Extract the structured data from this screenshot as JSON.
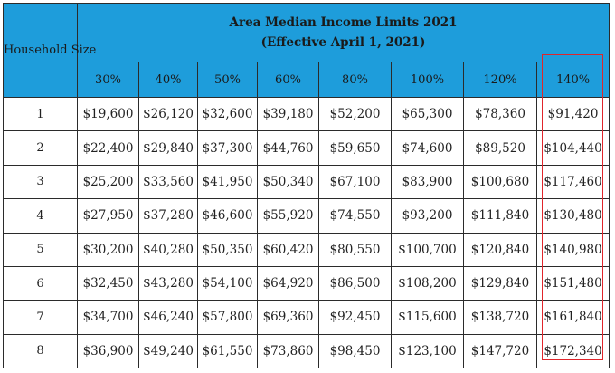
{
  "table": {
    "household_label": "Household Size",
    "title": "Area Median Income Limits 2021",
    "subtitle": "(Effective April 1, 2021)",
    "percent_headers": [
      "30%",
      "40%",
      "50%",
      "60%",
      "80%",
      "100%",
      "120%",
      "140%"
    ],
    "rows": [
      {
        "size": "1",
        "values": [
          "$19,600",
          "$26,120",
          "$32,600",
          "$39,180",
          "$52,200",
          "$65,300",
          "$78,360",
          "$91,420"
        ]
      },
      {
        "size": "2",
        "values": [
          "$22,400",
          "$29,840",
          "$37,300",
          "$44,760",
          "$59,650",
          "$74,600",
          "$89,520",
          "$104,440"
        ]
      },
      {
        "size": "3",
        "values": [
          "$25,200",
          "$33,560",
          "$41,950",
          "$50,340",
          "$67,100",
          "$83,900",
          "$100,680",
          "$117,460"
        ]
      },
      {
        "size": "4",
        "values": [
          "$27,950",
          "$37,280",
          "$46,600",
          "$55,920",
          "$74,550",
          "$93,200",
          "$111,840",
          "$130,480"
        ]
      },
      {
        "size": "5",
        "values": [
          "$30,200",
          "$40,280",
          "$50,350",
          "$60,420",
          "$80,550",
          "$100,700",
          "$120,840",
          "$140,980"
        ]
      },
      {
        "size": "6",
        "values": [
          "$32,450",
          "$43,280",
          "$54,100",
          "$64,920",
          "$86,500",
          "$108,200",
          "$129,840",
          "$151,480"
        ]
      },
      {
        "size": "7",
        "values": [
          "$34,700",
          "$46,240",
          "$57,800",
          "$69,360",
          "$92,450",
          "$115,600",
          "$138,720",
          "$161,840"
        ]
      },
      {
        "size": "8",
        "values": [
          "$36,900",
          "$49,240",
          "$61,550",
          "$73,860",
          "$98,450",
          "$123,100",
          "$147,720",
          "$172,340"
        ]
      }
    ]
  },
  "colors": {
    "header_background": "#1e9ddb",
    "highlight_border": "#e0252b",
    "grid_lines": "#2b2b2b"
  }
}
